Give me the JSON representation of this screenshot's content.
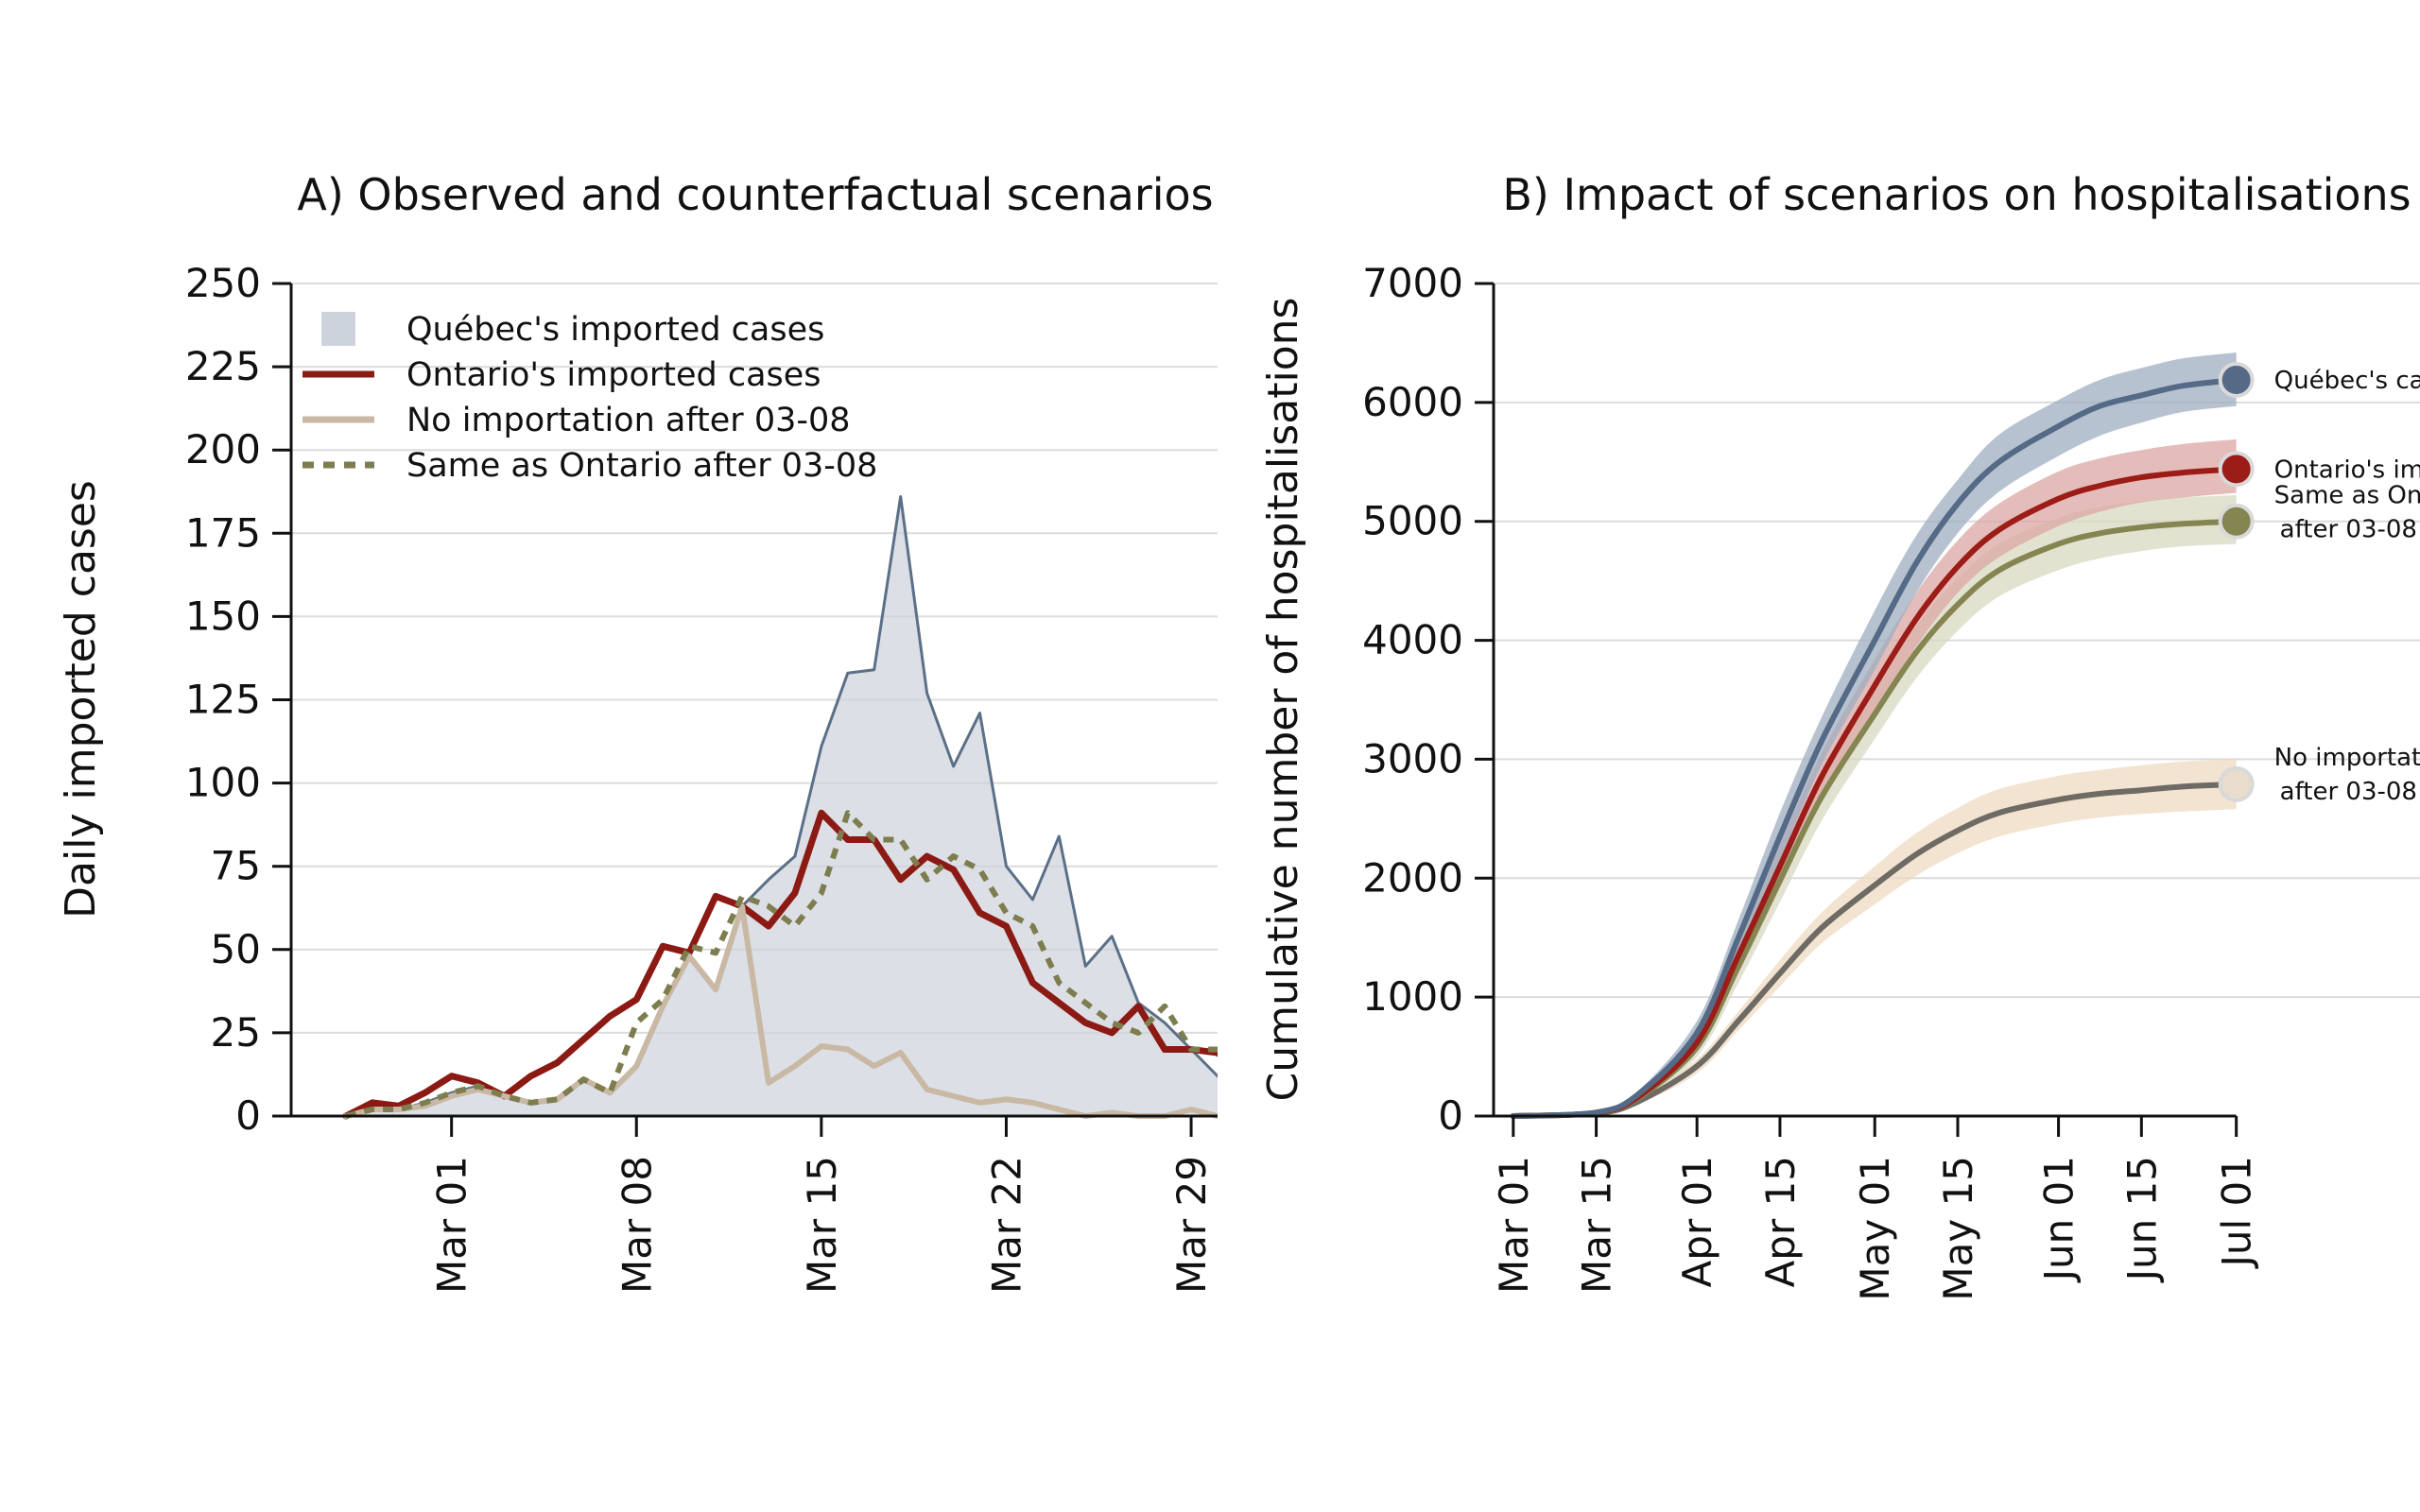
{
  "chart_data": [
    {
      "type": "area",
      "title": "A) Observed and counterfactual scenarios",
      "xlabel": "",
      "ylabel": "Daily imported cases",
      "ylim": [
        0,
        250
      ],
      "yticks": [
        0,
        25,
        50,
        75,
        100,
        125,
        150,
        175,
        200,
        225,
        250
      ],
      "xlim": [
        "2020-02-24",
        "2020-03-30"
      ],
      "xticks": [
        "2020-03-01",
        "2020-03-08",
        "2020-03-15",
        "2020-03-22",
        "2020-03-29"
      ],
      "xtick_labels": [
        "Mar 01",
        "Mar 08",
        "Mar 15",
        "Mar 22",
        "Mar 29"
      ],
      "grid": "horizontal",
      "legend_position": "top-left",
      "x": [
        "2020-02-26",
        "2020-02-27",
        "2020-02-28",
        "2020-02-29",
        "2020-03-01",
        "2020-03-02",
        "2020-03-03",
        "2020-03-04",
        "2020-03-05",
        "2020-03-06",
        "2020-03-07",
        "2020-03-08",
        "2020-03-09",
        "2020-03-10",
        "2020-03-11",
        "2020-03-12",
        "2020-03-13",
        "2020-03-14",
        "2020-03-15",
        "2020-03-16",
        "2020-03-17",
        "2020-03-18",
        "2020-03-19",
        "2020-03-20",
        "2020-03-21",
        "2020-03-22",
        "2020-03-23",
        "2020-03-24",
        "2020-03-25",
        "2020-03-26",
        "2020-03-27",
        "2020-03-28",
        "2020-03-29",
        "2020-03-30",
        "2020-03-31"
      ],
      "series": [
        {
          "name": "Québec's imported cases",
          "style": "area",
          "color": "#5b7088",
          "fill": "#cdd3dc",
          "values": [
            0,
            2,
            2,
            4,
            7,
            9,
            6,
            4,
            5,
            11,
            7,
            15,
            33,
            48,
            38,
            63,
            71,
            78,
            111,
            133,
            134,
            186,
            127,
            105,
            121,
            75,
            65,
            84,
            45,
            54,
            34,
            28,
            20,
            12,
            5
          ]
        },
        {
          "name": "Ontario's imported cases",
          "style": "line",
          "color": "#8c1a14",
          "values": [
            0,
            4,
            3,
            7,
            12,
            10,
            6,
            12,
            16,
            23,
            30,
            35,
            51,
            49,
            66,
            63,
            57,
            67,
            91,
            83,
            83,
            71,
            78,
            74,
            61,
            57,
            40,
            34,
            28,
            25,
            33,
            20,
            20,
            19,
            12
          ]
        },
        {
          "name": "No importation after 03-08",
          "style": "line",
          "color": "#c9b8a4",
          "values": [
            0,
            2,
            2,
            3,
            6,
            8,
            6,
            4,
            5,
            11,
            7,
            15,
            33,
            48,
            38,
            63,
            10,
            15,
            21,
            20,
            15,
            19,
            8,
            6,
            4,
            5,
            4,
            2,
            0,
            1,
            0,
            0,
            2,
            0,
            0
          ]
        },
        {
          "name": "Same as Ontario after 03-08",
          "style": "dashed",
          "color": "#7d7d4f",
          "values": [
            0,
            2,
            2,
            4,
            7,
            9,
            6,
            4,
            5,
            11,
            7,
            28,
            35,
            51,
            49,
            66,
            63,
            57,
            67,
            91,
            83,
            83,
            71,
            78,
            74,
            61,
            57,
            40,
            34,
            28,
            25,
            33,
            20,
            20,
            19
          ]
        }
      ]
    },
    {
      "type": "line",
      "title": "B) Impact of scenarios on hospitalisations",
      "xlabel": "",
      "ylabel": "Cumulative number of hospitalisations",
      "ylim": [
        0,
        7000
      ],
      "yticks": [
        0,
        1000,
        2000,
        3000,
        4000,
        5000,
        6000,
        7000
      ],
      "xlim": [
        "2020-02-27",
        "2020-08-01"
      ],
      "xticks": [
        "2020-03-01",
        "2020-03-15",
        "2020-04-01",
        "2020-04-15",
        "2020-05-01",
        "2020-05-15",
        "2020-06-01",
        "2020-06-15",
        "2020-07-01"
      ],
      "xtick_labels": [
        "Mar 01",
        "Mar 15",
        "Apr 01",
        "Apr 15",
        "May 01",
        "May 15",
        "Jun 01",
        "Jun 15",
        "Jul 01"
      ],
      "grid": "horizontal",
      "legend_position": "end-of-line labels (right)",
      "x": [
        "2020-03-01",
        "2020-03-15",
        "2020-03-22",
        "2020-04-01",
        "2020-04-08",
        "2020-04-15",
        "2020-04-22",
        "2020-05-01",
        "2020-05-08",
        "2020-05-15",
        "2020-05-22",
        "2020-06-01",
        "2020-06-08",
        "2020-06-15",
        "2020-06-22",
        "2020-07-01"
      ],
      "series": [
        {
          "name": "Québec's cases",
          "label_lines": [
            "Québec's cases"
          ],
          "color": "#546a86",
          "band_color": "#9fadc0",
          "values": [
            0,
            30,
            180,
            700,
            1500,
            2350,
            3150,
            4000,
            4650,
            5150,
            5500,
            5800,
            5970,
            6060,
            6140,
            6190
          ],
          "lower": [
            0,
            25,
            150,
            600,
            1350,
            2150,
            2950,
            3750,
            4400,
            4900,
            5250,
            5550,
            5720,
            5830,
            5920,
            5970
          ],
          "upper": [
            0,
            35,
            210,
            800,
            1650,
            2550,
            3350,
            4250,
            4880,
            5350,
            5730,
            6020,
            6190,
            6290,
            6370,
            6420
          ]
        },
        {
          "name": "Ontario's imported cases",
          "label_lines": [
            "Ontario's imported cases"
          ],
          "color": "#9c1c18",
          "band_color": "#dba7a4",
          "values": [
            0,
            28,
            160,
            620,
            1350,
            2100,
            2850,
            3620,
            4180,
            4620,
            4930,
            5190,
            5300,
            5370,
            5410,
            5440
          ],
          "lower": [
            0,
            23,
            140,
            540,
            1200,
            1920,
            2650,
            3400,
            3950,
            4400,
            4700,
            4960,
            5080,
            5160,
            5200,
            5240
          ],
          "upper": [
            0,
            33,
            180,
            700,
            1500,
            2280,
            3050,
            3840,
            4400,
            4840,
            5150,
            5420,
            5530,
            5600,
            5650,
            5690
          ]
        },
        {
          "name": "Same as Ontario after 03-08",
          "label_lines": [
            "Same as Ontario",
            "after 03-08"
          ],
          "color": "#858552",
          "band_color": "#d8d8c0",
          "values": [
            0,
            26,
            150,
            580,
            1260,
            1980,
            2680,
            3380,
            3900,
            4300,
            4590,
            4810,
            4900,
            4950,
            4980,
            5000
          ],
          "lower": [
            0,
            21,
            130,
            500,
            1120,
            1800,
            2480,
            3170,
            3680,
            4080,
            4370,
            4590,
            4690,
            4750,
            4790,
            4810
          ],
          "upper": [
            0,
            31,
            170,
            660,
            1400,
            2160,
            2880,
            3590,
            4120,
            4520,
            4810,
            5030,
            5120,
            5170,
            5200,
            5220
          ]
        },
        {
          "name": "No importation after 03-08",
          "label_lines": [
            "No importation",
            "after 03-08"
          ],
          "color": "#6e6a64",
          "band_color": "#efd9c2",
          "values": [
            0,
            22,
            120,
            420,
            800,
            1200,
            1580,
            1940,
            2200,
            2400,
            2550,
            2660,
            2710,
            2740,
            2770,
            2790
          ],
          "lower": [
            0,
            18,
            100,
            360,
            720,
            1090,
            1450,
            1780,
            2020,
            2210,
            2350,
            2460,
            2510,
            2540,
            2560,
            2580
          ],
          "upper": [
            0,
            26,
            140,
            480,
            880,
            1310,
            1710,
            2100,
            2380,
            2590,
            2750,
            2860,
            2910,
            2950,
            2980,
            3000
          ]
        }
      ]
    }
  ]
}
